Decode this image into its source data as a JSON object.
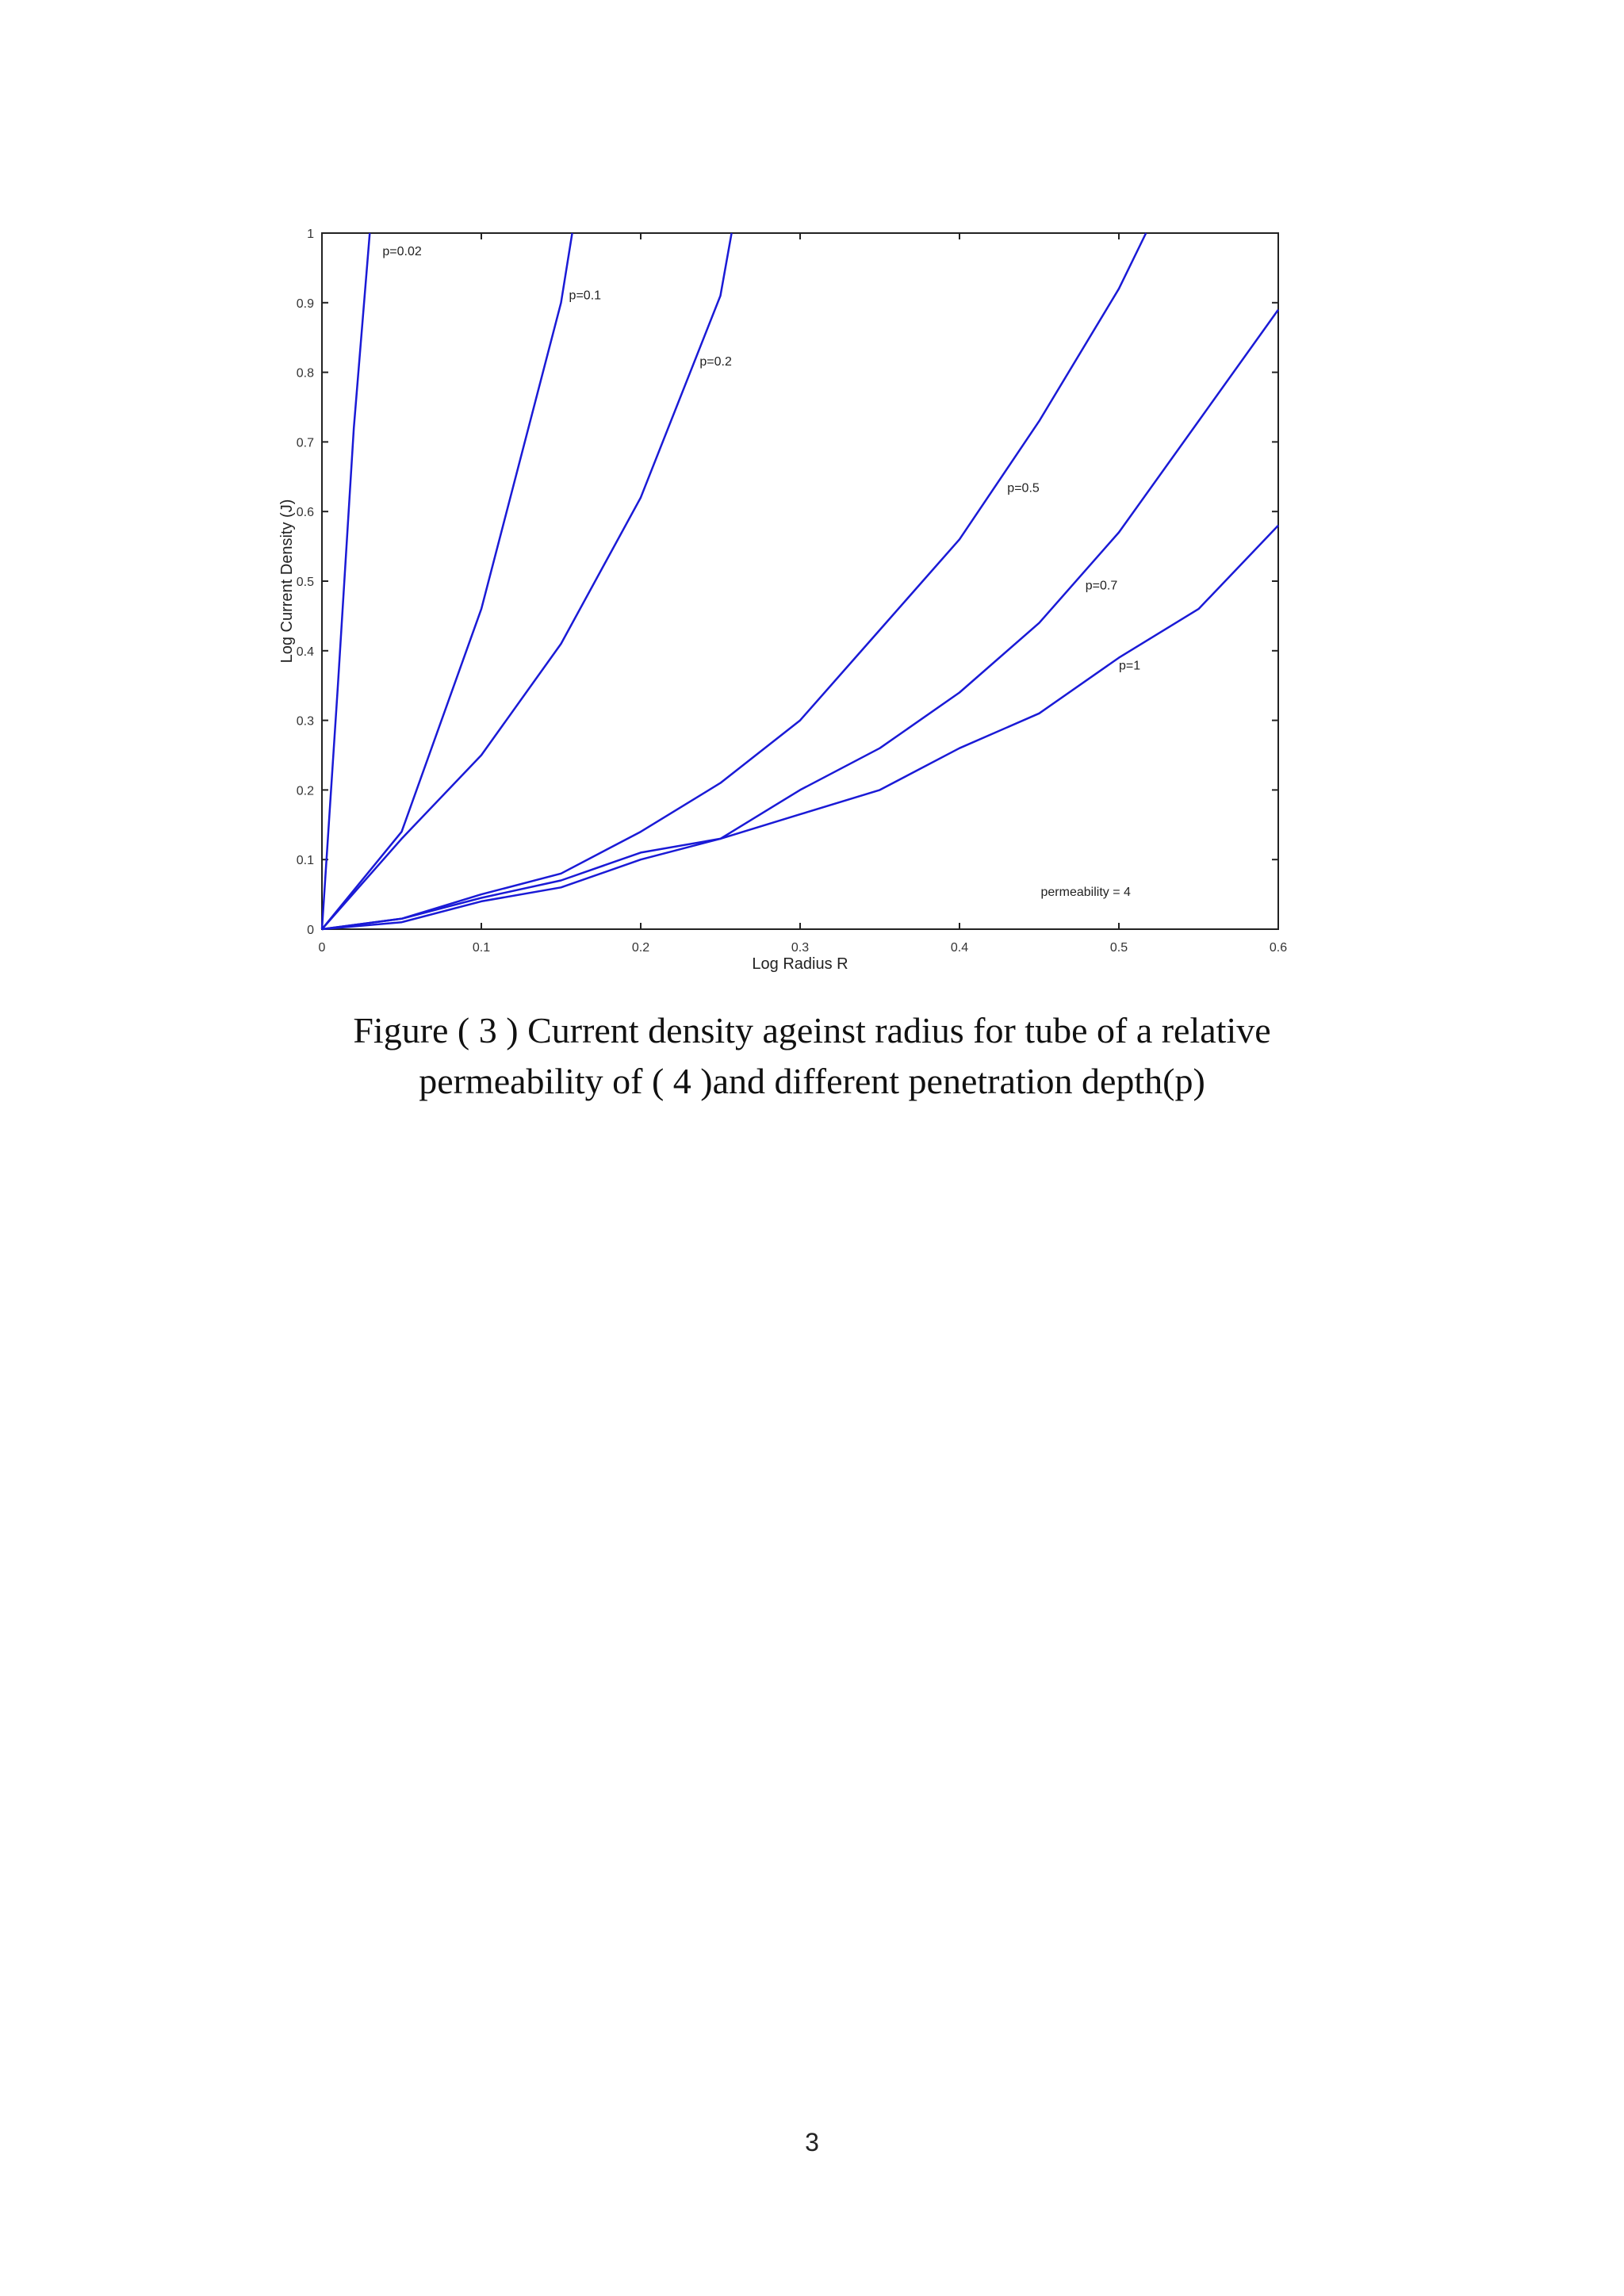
{
  "chart_data": {
    "type": "line",
    "title": "",
    "xlabel": "Log Radius R",
    "ylabel": "Log Current Density (J)",
    "xlim": [
      0,
      0.6
    ],
    "ylim": [
      0,
      1
    ],
    "xticks": [
      "0",
      "0.1",
      "0.2",
      "0.3",
      "0.4",
      "0.5",
      "0.6"
    ],
    "yticks": [
      "0",
      "0.1",
      "0.2",
      "0.3",
      "0.4",
      "0.5",
      "0.6",
      "0.7",
      "0.8",
      "0.9",
      "1"
    ],
    "grid": false,
    "line_color": "#1a1ad6",
    "series": [
      {
        "name": "p=0.02",
        "x": [
          0,
          0.01,
          0.02,
          0.03
        ],
        "y": [
          0,
          0.35,
          0.72,
          1.0
        ]
      },
      {
        "name": "p=0.1",
        "x": [
          0,
          0.05,
          0.1,
          0.15,
          0.157
        ],
        "y": [
          0,
          0.14,
          0.46,
          0.9,
          1.0
        ]
      },
      {
        "name": "p=0.2",
        "x": [
          0,
          0.05,
          0.1,
          0.15,
          0.2,
          0.25,
          0.257
        ],
        "y": [
          0,
          0.13,
          0.25,
          0.41,
          0.62,
          0.91,
          1.0
        ]
      },
      {
        "name": "p=0.5",
        "x": [
          0,
          0.05,
          0.1,
          0.15,
          0.2,
          0.25,
          0.3,
          0.35,
          0.4,
          0.45,
          0.5,
          0.517
        ],
        "y": [
          0,
          0.015,
          0.05,
          0.08,
          0.14,
          0.21,
          0.3,
          0.43,
          0.56,
          0.73,
          0.92,
          1.0
        ]
      },
      {
        "name": "p=0.7",
        "x": [
          0,
          0.05,
          0.1,
          0.15,
          0.2,
          0.25,
          0.3,
          0.35,
          0.4,
          0.45,
          0.5,
          0.55,
          0.6
        ],
        "y": [
          0,
          0.015,
          0.045,
          0.07,
          0.11,
          0.13,
          0.2,
          0.26,
          0.34,
          0.44,
          0.57,
          0.73,
          0.89
        ]
      },
      {
        "name": "p=1",
        "x": [
          0,
          0.05,
          0.1,
          0.15,
          0.2,
          0.25,
          0.3,
          0.35,
          0.4,
          0.45,
          0.5,
          0.55,
          0.6
        ],
        "y": [
          0,
          0.01,
          0.04,
          0.06,
          0.1,
          0.13,
          0.165,
          0.2,
          0.26,
          0.31,
          0.39,
          0.46,
          0.58
        ]
      }
    ],
    "annotations": [
      {
        "text": "p=0.02",
        "x": 0.038,
        "y": 0.968
      },
      {
        "text": "p=0.1",
        "x": 0.155,
        "y": 0.905
      },
      {
        "text": "p=0.2",
        "x": 0.237,
        "y": 0.81
      },
      {
        "text": "p=0.5",
        "x": 0.43,
        "y": 0.628
      },
      {
        "text": "p=0.7",
        "x": 0.479,
        "y": 0.488
      },
      {
        "text": "p=1",
        "x": 0.5,
        "y": 0.373
      },
      {
        "text": "permeability = 4",
        "x": 0.451,
        "y": 0.048
      }
    ]
  },
  "caption": {
    "line1": "Figure ( 3 ) Current density ageinst radius for tube of a relative",
    "line2": "permeability  of ( 4 )and different penetration depth(p)"
  },
  "page_number": "3"
}
